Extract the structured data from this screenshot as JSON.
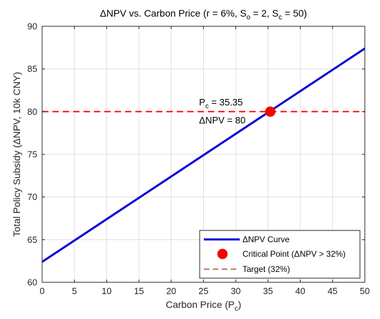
{
  "chart_data": {
    "type": "line",
    "title": {
      "prefix": "ΔNPV vs. Carbon Price (r = 6%, S",
      "sub1": "o",
      "mid": " = 2, S",
      "sub2": "c",
      "suffix": " = 50)"
    },
    "xlabel": {
      "main": "Carbon Price (P",
      "sub": "c",
      "close": ")"
    },
    "ylabel": "Total Policy Subsidy (ΔNPV, 10k CNY)",
    "xlim": [
      0,
      50
    ],
    "ylim": [
      60,
      90
    ],
    "x_ticks": [
      0,
      5,
      10,
      15,
      20,
      25,
      30,
      35,
      40,
      45,
      50
    ],
    "y_ticks": [
      60,
      65,
      70,
      75,
      80,
      85,
      90
    ],
    "grid": true,
    "series": [
      {
        "name": "ΔNPV Curve",
        "x": [
          0,
          50
        ],
        "y": [
          62.4,
          87.4
        ],
        "color": "#0000d9"
      }
    ],
    "critical_point": {
      "name": "Critical Point (ΔNPV > 32%)",
      "x": 35.35,
      "y": 80,
      "color": "#ff0000",
      "edge": "#cc2200"
    },
    "target_line": {
      "name": "Target (32%)",
      "y": 80,
      "color": "#ff0000"
    },
    "annotation": {
      "line1_main": "P",
      "line1_sub": "c",
      "line1_rest": " = 35.35",
      "line2": "ΔNPV = 80"
    },
    "legend": {
      "position": "bottom-right",
      "entries": [
        "ΔNPV Curve",
        "Critical Point (ΔNPV > 32%)",
        "Target (32%)"
      ]
    }
  }
}
